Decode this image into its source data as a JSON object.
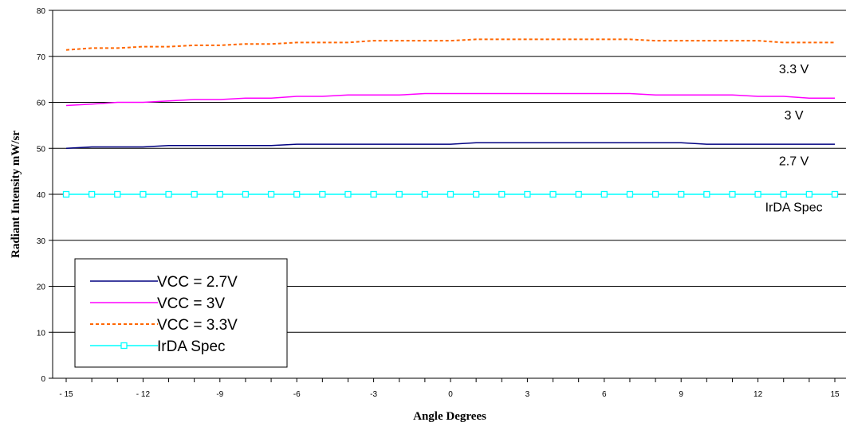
{
  "chart_data": {
    "type": "line",
    "title": "",
    "xlabel": "Angle Degrees",
    "ylabel": "Radiant Intensity mW/sr",
    "xlim": [
      -15,
      15
    ],
    "ylim": [
      0,
      80
    ],
    "x_ticks": [
      -15,
      -12,
      -9,
      -6,
      -3,
      0,
      3,
      6,
      9,
      12,
      15
    ],
    "x_tick_labels": [
      "- 15",
      "- 12",
      "-9",
      "-6",
      "-3",
      "0",
      "3",
      "6",
      "9",
      "12",
      "15"
    ],
    "y_ticks": [
      0,
      10,
      20,
      30,
      40,
      50,
      60,
      70,
      80
    ],
    "grid": "horizontal",
    "legend_position": "bottom-left",
    "x": [
      -15,
      -14,
      -13,
      -12,
      -11,
      -10,
      -9,
      -8,
      -7,
      -6,
      -5,
      -4,
      -3,
      -2,
      -1,
      0,
      1,
      2,
      3,
      4,
      5,
      6,
      7,
      8,
      9,
      10,
      11,
      12,
      13,
      14,
      15
    ],
    "series": [
      {
        "name": "VCC = 2.7V",
        "color": "#000080",
        "style": "solid",
        "values": [
          50.0,
          50.3,
          50.3,
          50.3,
          50.6,
          50.6,
          50.6,
          50.6,
          50.6,
          50.9,
          50.9,
          50.9,
          50.9,
          50.9,
          50.9,
          50.9,
          51.2,
          51.2,
          51.2,
          51.2,
          51.2,
          51.2,
          51.2,
          51.2,
          51.2,
          50.9,
          50.9,
          50.9,
          50.9,
          50.9,
          50.9
        ]
      },
      {
        "name": "VCC = 3V",
        "color": "#ff00ff",
        "style": "solid",
        "values": [
          59.3,
          59.6,
          60.0,
          60.0,
          60.3,
          60.6,
          60.6,
          60.9,
          60.9,
          61.3,
          61.3,
          61.6,
          61.6,
          61.6,
          61.9,
          61.9,
          61.9,
          61.9,
          61.9,
          61.9,
          61.9,
          61.9,
          61.9,
          61.6,
          61.6,
          61.6,
          61.6,
          61.3,
          61.3,
          60.9,
          60.9
        ]
      },
      {
        "name": "VCC = 3.3V",
        "color": "#ff6600",
        "style": "dashed",
        "values": [
          71.4,
          71.8,
          71.8,
          72.1,
          72.1,
          72.4,
          72.4,
          72.7,
          72.7,
          73.0,
          73.0,
          73.0,
          73.4,
          73.4,
          73.4,
          73.4,
          73.7,
          73.7,
          73.7,
          73.7,
          73.7,
          73.7,
          73.7,
          73.4,
          73.4,
          73.4,
          73.4,
          73.4,
          73.0,
          73.0,
          73.0
        ]
      },
      {
        "name": "IrDA Spec",
        "color": "#00ffff",
        "style": "solid-square-markers",
        "values": [
          40,
          40,
          40,
          40,
          40,
          40,
          40,
          40,
          40,
          40,
          40,
          40,
          40,
          40,
          40,
          40,
          40,
          40,
          40,
          40,
          40,
          40,
          40,
          40,
          40,
          40,
          40,
          40,
          40,
          40,
          40
        ]
      }
    ],
    "annotations": [
      {
        "text": "3.3 V",
        "x": 13.4,
        "y": 66.3
      },
      {
        "text": "3 V",
        "x": 13.4,
        "y": 56.3
      },
      {
        "text": "2.7 V",
        "x": 13.4,
        "y": 46.3
      },
      {
        "text": "IrDA Spec",
        "x": 13.4,
        "y": 36.3
      }
    ]
  }
}
